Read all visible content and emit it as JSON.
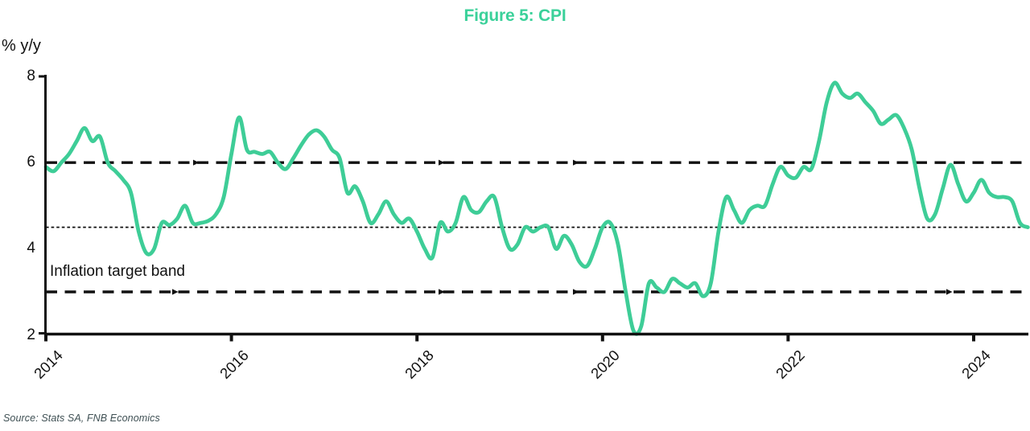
{
  "title": "Figure 5: CPI",
  "y_axis_unit": "% y/y",
  "annotation": "Inflation target band",
  "source": "Source: Stats SA, FNB Economics",
  "colors": {
    "title_green": "#3BD19A",
    "line_green": "#3ECD97",
    "axis_black": "#111111",
    "source_gray": "#3F5054"
  },
  "chart_data": {
    "type": "line",
    "title": "Figure 5: CPI",
    "xlabel": "",
    "ylabel": "% y/y",
    "ylim": [
      2,
      8
    ],
    "y_ticks": [
      "8",
      "6",
      "4",
      "2"
    ],
    "y_tick_values": [
      8,
      6,
      4,
      2
    ],
    "x_ticks": [
      "2014",
      "2016",
      "2018",
      "2020",
      "2022",
      "2024"
    ],
    "x_tick_years": [
      2014,
      2016,
      2018,
      2020,
      2022,
      2024
    ],
    "frequency": "monthly",
    "x_start": "2014-01",
    "x_end": "2024-08",
    "grid": false,
    "legend": "none",
    "reference_lines": [
      {
        "value": 6,
        "style": "dashed",
        "meaning": "target band upper"
      },
      {
        "value": 4.5,
        "style": "dotted",
        "meaning": "target midpoint"
      },
      {
        "value": 3,
        "style": "dashed",
        "meaning": "target band lower",
        "label": "Inflation target band"
      }
    ],
    "series": [
      {
        "name": "CPI % y/y",
        "values": [
          5.9,
          5.8,
          6.0,
          6.2,
          6.5,
          6.8,
          6.5,
          6.6,
          6.0,
          5.8,
          5.6,
          5.3,
          4.4,
          3.9,
          4.0,
          4.6,
          4.55,
          4.7,
          5.0,
          4.6,
          4.6,
          4.65,
          4.8,
          5.2,
          6.2,
          7.05,
          6.3,
          6.25,
          6.2,
          6.25,
          6.0,
          5.85,
          6.1,
          6.4,
          6.65,
          6.75,
          6.6,
          6.3,
          6.1,
          5.3,
          5.45,
          5.1,
          4.6,
          4.8,
          5.1,
          4.8,
          4.6,
          4.7,
          4.4,
          4.0,
          3.8,
          4.6,
          4.4,
          4.6,
          5.2,
          4.9,
          4.85,
          5.1,
          5.2,
          4.5,
          4.0,
          4.1,
          4.5,
          4.4,
          4.5,
          4.5,
          4.0,
          4.3,
          4.1,
          3.7,
          3.6,
          4.0,
          4.5,
          4.6,
          4.1,
          3.0,
          2.1,
          2.2,
          3.2,
          3.1,
          3.0,
          3.3,
          3.2,
          3.1,
          3.2,
          2.9,
          3.2,
          4.4,
          5.2,
          4.9,
          4.6,
          4.9,
          5.0,
          5.0,
          5.5,
          5.9,
          5.7,
          5.65,
          5.9,
          5.85,
          6.5,
          7.4,
          7.85,
          7.6,
          7.5,
          7.6,
          7.4,
          7.2,
          6.9,
          7.0,
          7.1,
          6.8,
          6.3,
          5.4,
          4.7,
          4.8,
          5.4,
          5.95,
          5.5,
          5.1,
          5.3,
          5.6,
          5.3,
          5.2,
          5.2,
          5.1,
          4.6,
          4.5
        ]
      }
    ]
  }
}
